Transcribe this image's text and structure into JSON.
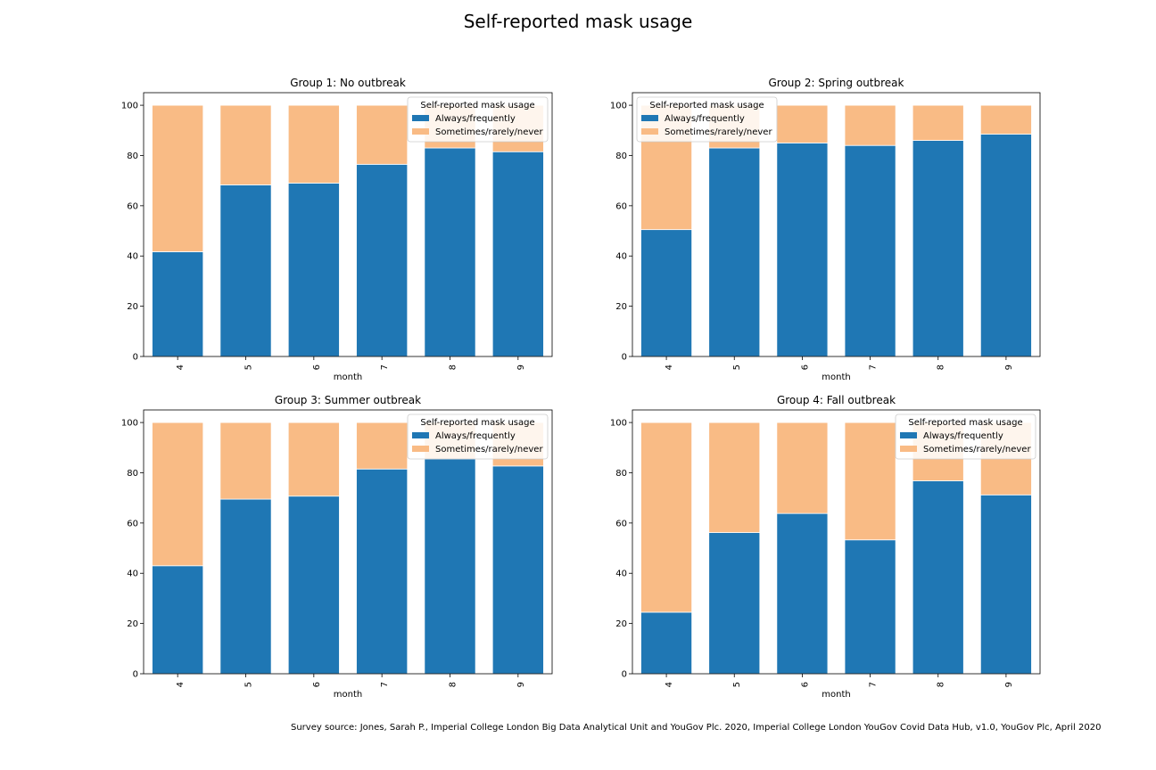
{
  "figure": {
    "title": "Self-reported mask usage",
    "source_note": "Survey source: Jones, Sarah P., Imperial College London Big Data Analytical Unit and YouGov Plc. 2020, Imperial College London YouGov Covid Data Hub, v1.0, YouGov Plc, April 2020"
  },
  "colors": {
    "always": "#1f77b4",
    "sometimes": "#f9bb85"
  },
  "chart_data": [
    {
      "type": "bar",
      "stacked": true,
      "title": "Group 1: No outbreak",
      "xlabel": "month",
      "ylabel": "",
      "categories": [
        "4",
        "5",
        "6",
        "7",
        "8",
        "9"
      ],
      "ylim": [
        0,
        105
      ],
      "yticks": [
        0,
        20,
        40,
        60,
        80,
        100
      ],
      "series": [
        {
          "name": "Always/frequently",
          "values": [
            41.7,
            68.3,
            69.0,
            76.5,
            83.0,
            81.5
          ]
        },
        {
          "name": "Sometimes/rarely/never",
          "values": [
            58.3,
            31.7,
            31.0,
            23.5,
            17.0,
            18.5
          ]
        }
      ],
      "legend": {
        "title": "Self-reported mask usage",
        "placement": "upper right"
      }
    },
    {
      "type": "bar",
      "stacked": true,
      "title": "Group 2: Spring outbreak",
      "xlabel": "month",
      "ylabel": "",
      "categories": [
        "4",
        "5",
        "6",
        "7",
        "8",
        "9"
      ],
      "ylim": [
        0,
        105
      ],
      "yticks": [
        0,
        20,
        40,
        60,
        80,
        100
      ],
      "series": [
        {
          "name": "Always/frequently",
          "values": [
            50.5,
            83.0,
            85.0,
            84.0,
            86.0,
            88.5
          ]
        },
        {
          "name": "Sometimes/rarely/never",
          "values": [
            49.5,
            17.0,
            15.0,
            16.0,
            14.0,
            11.5
          ]
        }
      ],
      "legend": {
        "title": "Self-reported mask usage",
        "placement": "upper left"
      }
    },
    {
      "type": "bar",
      "stacked": true,
      "title": "Group 3: Summer outbreak",
      "xlabel": "month",
      "ylabel": "",
      "categories": [
        "4",
        "5",
        "6",
        "7",
        "8",
        "9"
      ],
      "ylim": [
        0,
        105
      ],
      "yticks": [
        0,
        20,
        40,
        60,
        80,
        100
      ],
      "series": [
        {
          "name": "Always/frequently",
          "values": [
            43.0,
            69.5,
            70.7,
            81.5,
            85.5,
            82.7
          ]
        },
        {
          "name": "Sometimes/rarely/never",
          "values": [
            57.0,
            30.5,
            29.3,
            18.5,
            14.5,
            17.3
          ]
        }
      ],
      "legend": {
        "title": "Self-reported mask usage",
        "placement": "upper right"
      }
    },
    {
      "type": "bar",
      "stacked": true,
      "title": "Group 4: Fall outbreak",
      "xlabel": "month",
      "ylabel": "",
      "categories": [
        "4",
        "5",
        "6",
        "7",
        "8",
        "9"
      ],
      "ylim": [
        0,
        105
      ],
      "yticks": [
        0,
        20,
        40,
        60,
        80,
        100
      ],
      "series": [
        {
          "name": "Always/frequently",
          "values": [
            24.5,
            56.2,
            63.8,
            53.3,
            76.8,
            71.2
          ]
        },
        {
          "name": "Sometimes/rarely/never",
          "values": [
            75.5,
            43.8,
            36.2,
            46.7,
            23.2,
            28.8
          ]
        }
      ],
      "legend": {
        "title": "Self-reported mask usage",
        "placement": "upper right"
      }
    }
  ]
}
